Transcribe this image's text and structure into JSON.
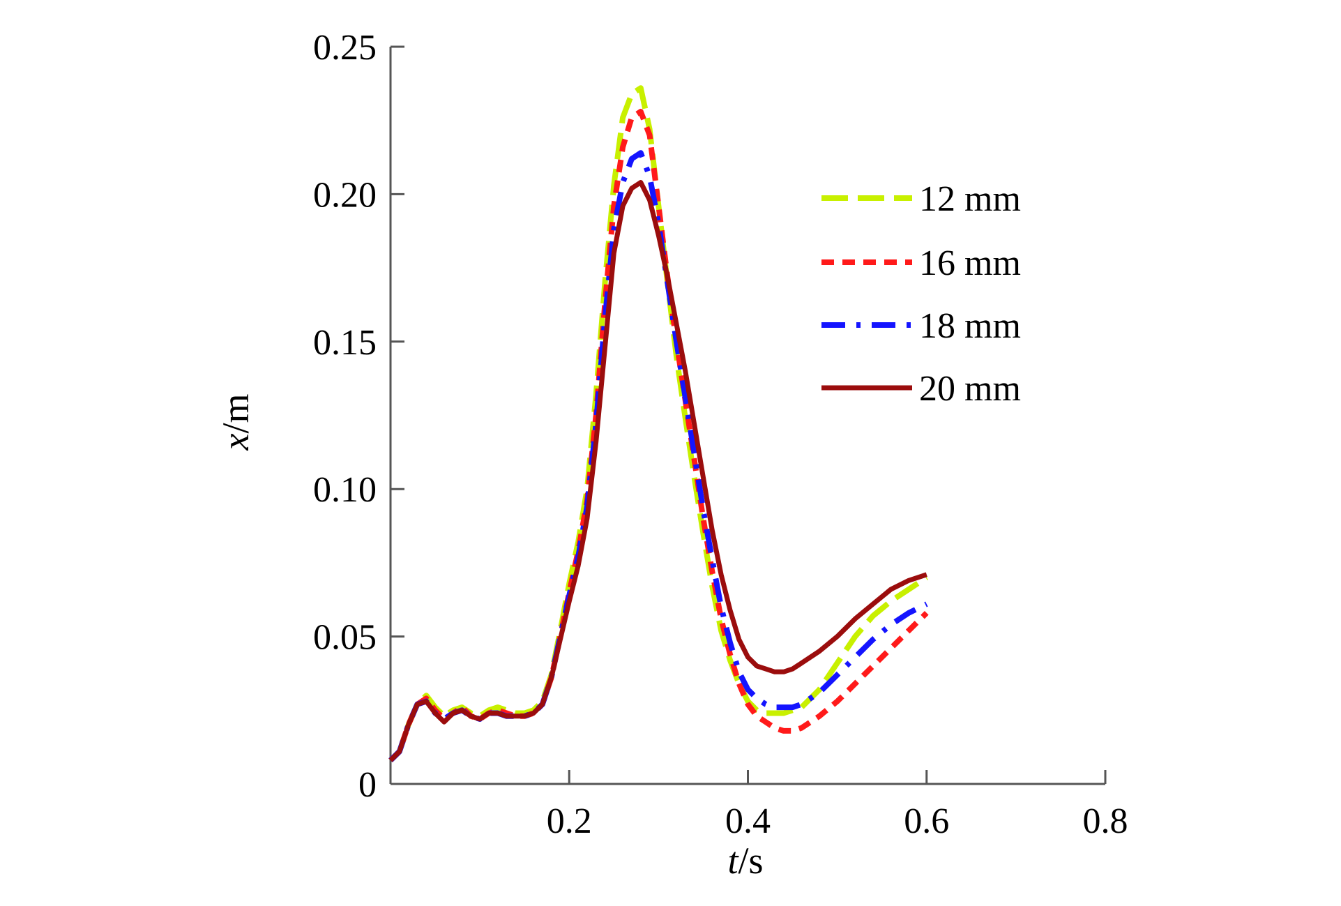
{
  "chart_data": {
    "type": "line",
    "xlabel": {
      "var": "t",
      "unit": "/s"
    },
    "ylabel": {
      "var": "x",
      "unit": "/m"
    },
    "xlim": [
      0,
      0.8
    ],
    "ylim": [
      0,
      0.25
    ],
    "x_ticks": [
      0.2,
      0.4,
      0.6,
      0.8
    ],
    "x_tick_labels": [
      "0.2",
      "0.4",
      "0.6",
      "0.8"
    ],
    "y_ticks": [
      0,
      0.05,
      0.1,
      0.15,
      0.2,
      0.25
    ],
    "y_tick_labels": [
      "0",
      "0.05",
      "0.10",
      "0.15",
      "0.20",
      "0.25"
    ],
    "grid": false,
    "legend_position": "top-right",
    "series": [
      {
        "name": "12 mm",
        "color": "#c8f000",
        "dash": "long-dash",
        "x": [
          0,
          0.01,
          0.02,
          0.03,
          0.04,
          0.05,
          0.06,
          0.07,
          0.08,
          0.09,
          0.1,
          0.11,
          0.12,
          0.13,
          0.14,
          0.15,
          0.16,
          0.17,
          0.18,
          0.19,
          0.2,
          0.21,
          0.22,
          0.23,
          0.24,
          0.25,
          0.26,
          0.27,
          0.28,
          0.29,
          0.3,
          0.31,
          0.32,
          0.33,
          0.34,
          0.35,
          0.36,
          0.37,
          0.38,
          0.39,
          0.4,
          0.41,
          0.42,
          0.43,
          0.44,
          0.45,
          0.46,
          0.48,
          0.5,
          0.52,
          0.54,
          0.56,
          0.58,
          0.6
        ],
        "y": [
          0.008,
          0.011,
          0.02,
          0.027,
          0.03,
          0.026,
          0.023,
          0.025,
          0.026,
          0.024,
          0.023,
          0.025,
          0.026,
          0.025,
          0.024,
          0.024,
          0.025,
          0.028,
          0.037,
          0.052,
          0.068,
          0.082,
          0.1,
          0.132,
          0.17,
          0.203,
          0.226,
          0.234,
          0.236,
          0.222,
          0.196,
          0.17,
          0.145,
          0.124,
          0.104,
          0.085,
          0.067,
          0.052,
          0.042,
          0.034,
          0.028,
          0.025,
          0.024,
          0.024,
          0.024,
          0.025,
          0.026,
          0.032,
          0.041,
          0.05,
          0.057,
          0.062,
          0.066,
          0.07
        ]
      },
      {
        "name": "16 mm",
        "color": "#ff1a1a",
        "dash": "short-dash",
        "x": [
          0,
          0.01,
          0.02,
          0.03,
          0.04,
          0.05,
          0.06,
          0.07,
          0.08,
          0.09,
          0.1,
          0.11,
          0.12,
          0.13,
          0.14,
          0.15,
          0.16,
          0.17,
          0.18,
          0.19,
          0.2,
          0.21,
          0.22,
          0.23,
          0.24,
          0.25,
          0.26,
          0.27,
          0.28,
          0.29,
          0.3,
          0.31,
          0.32,
          0.33,
          0.34,
          0.35,
          0.36,
          0.37,
          0.38,
          0.39,
          0.4,
          0.41,
          0.42,
          0.43,
          0.44,
          0.45,
          0.46,
          0.48,
          0.5,
          0.52,
          0.54,
          0.56,
          0.58,
          0.6
        ],
        "y": [
          0.008,
          0.011,
          0.02,
          0.027,
          0.029,
          0.025,
          0.022,
          0.024,
          0.026,
          0.023,
          0.022,
          0.024,
          0.025,
          0.024,
          0.023,
          0.023,
          0.024,
          0.027,
          0.036,
          0.05,
          0.065,
          0.079,
          0.096,
          0.125,
          0.163,
          0.196,
          0.216,
          0.226,
          0.228,
          0.22,
          0.196,
          0.172,
          0.15,
          0.13,
          0.11,
          0.09,
          0.072,
          0.056,
          0.044,
          0.034,
          0.027,
          0.023,
          0.021,
          0.019,
          0.018,
          0.018,
          0.019,
          0.023,
          0.028,
          0.034,
          0.04,
          0.046,
          0.052,
          0.058
        ]
      },
      {
        "name": "18 mm",
        "color": "#1414ff",
        "dash": "dash-dot",
        "x": [
          0,
          0.01,
          0.02,
          0.03,
          0.04,
          0.05,
          0.06,
          0.07,
          0.08,
          0.09,
          0.1,
          0.11,
          0.12,
          0.13,
          0.14,
          0.15,
          0.16,
          0.17,
          0.18,
          0.19,
          0.2,
          0.21,
          0.22,
          0.23,
          0.24,
          0.25,
          0.26,
          0.27,
          0.28,
          0.29,
          0.3,
          0.31,
          0.32,
          0.33,
          0.34,
          0.35,
          0.36,
          0.37,
          0.38,
          0.39,
          0.4,
          0.41,
          0.42,
          0.43,
          0.44,
          0.45,
          0.46,
          0.48,
          0.5,
          0.52,
          0.54,
          0.56,
          0.58,
          0.6
        ],
        "y": [
          0.008,
          0.011,
          0.02,
          0.027,
          0.028,
          0.024,
          0.022,
          0.024,
          0.025,
          0.023,
          0.022,
          0.024,
          0.024,
          0.023,
          0.023,
          0.023,
          0.024,
          0.027,
          0.036,
          0.05,
          0.064,
          0.077,
          0.094,
          0.122,
          0.158,
          0.188,
          0.204,
          0.212,
          0.214,
          0.206,
          0.19,
          0.17,
          0.15,
          0.131,
          0.112,
          0.093,
          0.076,
          0.06,
          0.048,
          0.038,
          0.032,
          0.029,
          0.027,
          0.026,
          0.026,
          0.026,
          0.027,
          0.031,
          0.037,
          0.043,
          0.049,
          0.054,
          0.058,
          0.061
        ]
      },
      {
        "name": "20 mm",
        "color": "#9b0d0d",
        "dash": "solid",
        "x": [
          0,
          0.01,
          0.02,
          0.03,
          0.04,
          0.05,
          0.06,
          0.07,
          0.08,
          0.09,
          0.1,
          0.11,
          0.12,
          0.13,
          0.14,
          0.15,
          0.16,
          0.17,
          0.18,
          0.19,
          0.2,
          0.21,
          0.22,
          0.23,
          0.24,
          0.25,
          0.26,
          0.27,
          0.28,
          0.29,
          0.3,
          0.31,
          0.32,
          0.33,
          0.34,
          0.35,
          0.36,
          0.37,
          0.38,
          0.39,
          0.4,
          0.41,
          0.42,
          0.43,
          0.44,
          0.45,
          0.46,
          0.48,
          0.5,
          0.52,
          0.54,
          0.56,
          0.58,
          0.6
        ],
        "y": [
          0.008,
          0.011,
          0.02,
          0.027,
          0.028,
          0.024,
          0.021,
          0.024,
          0.025,
          0.023,
          0.022,
          0.024,
          0.024,
          0.023,
          0.023,
          0.023,
          0.024,
          0.027,
          0.036,
          0.049,
          0.062,
          0.074,
          0.09,
          0.116,
          0.148,
          0.18,
          0.196,
          0.202,
          0.204,
          0.198,
          0.186,
          0.172,
          0.156,
          0.14,
          0.122,
          0.104,
          0.086,
          0.071,
          0.059,
          0.049,
          0.043,
          0.04,
          0.039,
          0.038,
          0.038,
          0.039,
          0.041,
          0.045,
          0.05,
          0.056,
          0.061,
          0.066,
          0.069,
          0.071
        ]
      }
    ]
  }
}
